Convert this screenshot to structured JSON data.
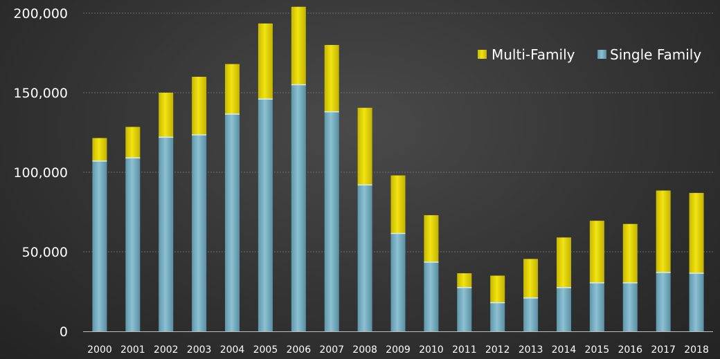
{
  "chart_data": {
    "type": "bar",
    "stacked": true,
    "categories": [
      "2000",
      "2001",
      "2002",
      "2003",
      "2004",
      "2005",
      "2006",
      "2007",
      "2008",
      "2009",
      "2010",
      "2011",
      "2012",
      "2013",
      "2014",
      "2015",
      "2016",
      "2017",
      "2018"
    ],
    "series": [
      {
        "name": "Single Family",
        "color": "#6fa8bd",
        "values": [
          107000,
          109000,
          122000,
          123500,
          136500,
          146000,
          155000,
          138000,
          92000,
          61500,
          43500,
          27500,
          18000,
          21000,
          27500,
          30500,
          30500,
          37000,
          36500
        ]
      },
      {
        "name": "Multi-Family",
        "color": "#e0d20a",
        "values": [
          14500,
          19500,
          28000,
          36500,
          31500,
          47500,
          49000,
          42000,
          48500,
          36500,
          29500,
          9000,
          17000,
          24500,
          31500,
          39000,
          37000,
          51500,
          50500
        ]
      }
    ],
    "y_ticks": [
      "0",
      "50,000",
      "100,000",
      "150,000",
      "200,000"
    ],
    "ylim": [
      0,
      200000
    ],
    "grid": true,
    "legend": {
      "position": "top-right",
      "order": [
        "Multi-Family",
        "Single Family"
      ]
    },
    "title": "",
    "xlabel": "",
    "ylabel": ""
  }
}
